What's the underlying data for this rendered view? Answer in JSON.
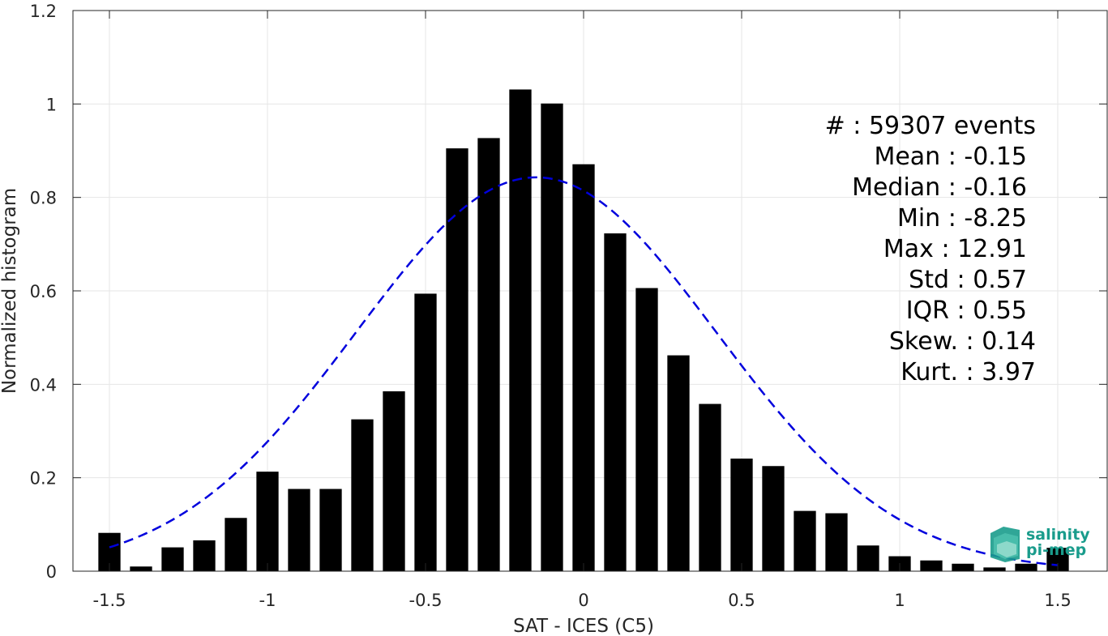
{
  "chart_data": {
    "type": "bar",
    "title": "",
    "xlabel": "SAT - ICES (C5)",
    "ylabel": "Normalized histogram",
    "xlim": [
      -1.6,
      1.6
    ],
    "ylim": [
      0,
      1.2
    ],
    "xticks": [
      -1.5,
      -1,
      -0.5,
      0,
      0.5,
      1,
      1.5
    ],
    "xtick_labels": [
      "-1.5",
      "-1",
      "-0.5",
      "0",
      "0.5",
      "1",
      "1.5"
    ],
    "yticks": [
      0,
      0.2,
      0.4,
      0.6,
      0.8,
      1,
      1.2
    ],
    "ytick_labels": [
      "0",
      "0.2",
      "0.4",
      "0.6",
      "0.8",
      "1",
      "1.2"
    ],
    "grid": true,
    "bar_color": "#000000",
    "curve_color": "#0000dd",
    "bars": {
      "x": [
        -1.5,
        -1.4,
        -1.3,
        -1.2,
        -1.1,
        -1.0,
        -0.9,
        -0.8,
        -0.7,
        -0.6,
        -0.5,
        -0.4,
        -0.3,
        -0.2,
        -0.1,
        0.0,
        0.1,
        0.2,
        0.3,
        0.4,
        0.5,
        0.6,
        0.7,
        0.8,
        0.9,
        1.0,
        1.1,
        1.2,
        1.3,
        1.4,
        1.5
      ],
      "values": [
        0.082,
        0.01,
        0.051,
        0.066,
        0.114,
        0.213,
        0.176,
        0.176,
        0.325,
        0.385,
        0.594,
        0.905,
        0.927,
        1.031,
        1.001,
        0.871,
        0.723,
        0.606,
        0.462,
        0.358,
        0.241,
        0.225,
        0.129,
        0.124,
        0.055,
        0.032,
        0.023,
        0.016,
        0.008,
        0.016,
        0.05
      ]
    },
    "gaussian_fit": {
      "mean": -0.15,
      "std": 0.57,
      "peak": 0.843,
      "x_range": [
        -1.5,
        1.5
      ],
      "style": "dashed"
    },
    "stats": [
      {
        "label": "#  : 59307 events"
      },
      {
        "label": "Mean : -0.15"
      },
      {
        "label": "Median : -0.16"
      },
      {
        "label": "Min : -8.25"
      },
      {
        "label": "Max : 12.91"
      },
      {
        "label": "Std : 0.57"
      },
      {
        "label": "IQR : 0.55"
      },
      {
        "label": "Skew. : 0.14"
      },
      {
        "label": "Kurt. : 3.97"
      }
    ]
  },
  "logo": {
    "line1": "salinity",
    "line2": "pi-mep",
    "color": "#1a9c8c"
  }
}
